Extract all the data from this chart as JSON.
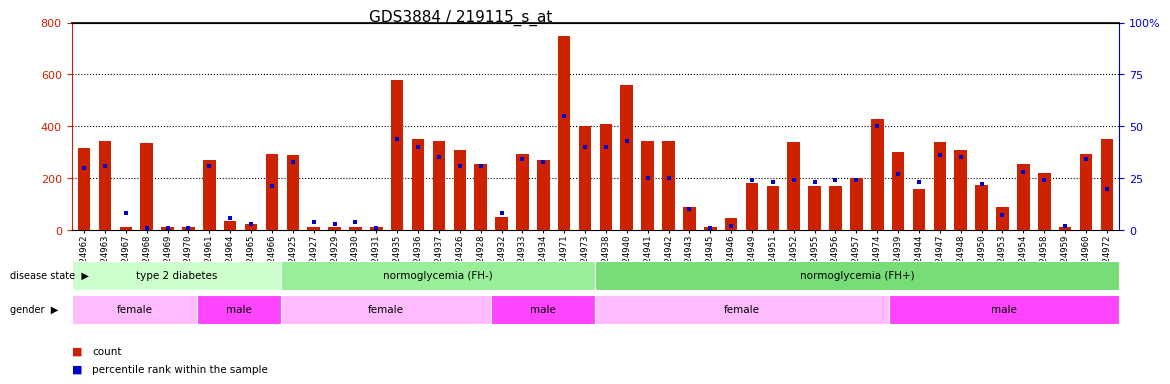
{
  "title": "GDS3884 / 219115_s_at",
  "samples": [
    "GSM624962",
    "GSM624963",
    "GSM624967",
    "GSM624968",
    "GSM624969",
    "GSM624970",
    "GSM624961",
    "GSM624964",
    "GSM624965",
    "GSM624966",
    "GSM624925",
    "GSM624927",
    "GSM624929",
    "GSM624930",
    "GSM624931",
    "GSM624935",
    "GSM624936",
    "GSM624937",
    "GSM624926",
    "GSM624928",
    "GSM624932",
    "GSM624933",
    "GSM624934",
    "GSM624971",
    "GSM624973",
    "GSM624938",
    "GSM624940",
    "GSM624941",
    "GSM624942",
    "GSM624943",
    "GSM624945",
    "GSM624946",
    "GSM624949",
    "GSM624951",
    "GSM624952",
    "GSM624955",
    "GSM624956",
    "GSM624957",
    "GSM624974",
    "GSM624939",
    "GSM624944",
    "GSM624947",
    "GSM624948",
    "GSM624950",
    "GSM624953",
    "GSM624954",
    "GSM624958",
    "GSM624959",
    "GSM624960",
    "GSM624972"
  ],
  "counts": [
    315,
    345,
    10,
    335,
    10,
    10,
    270,
    35,
    25,
    295,
    290,
    10,
    10,
    10,
    10,
    580,
    350,
    345,
    310,
    255,
    50,
    295,
    270,
    750,
    400,
    410,
    560,
    345,
    345,
    90,
    10,
    45,
    180,
    170,
    340,
    170,
    170,
    200,
    430,
    300,
    160,
    340,
    310,
    175,
    90,
    255,
    220,
    10,
    295,
    350
  ],
  "percentiles_pct": [
    30,
    31,
    8,
    1,
    1,
    1,
    31,
    6,
    3,
    21,
    33,
    4,
    3,
    4,
    1,
    44,
    40,
    35,
    31,
    31,
    8,
    34,
    33,
    55,
    40,
    40,
    43,
    25,
    25,
    10,
    1,
    2,
    24,
    23,
    24,
    23,
    24,
    24,
    50,
    27,
    23,
    36,
    35,
    22,
    7,
    28,
    24,
    2,
    34,
    20
  ],
  "disease_state_groups": [
    {
      "label": "type 2 diabetes",
      "start": 0,
      "end": 10,
      "color": "#ccffcc"
    },
    {
      "label": "normoglycemia (FH-)",
      "start": 10,
      "end": 25,
      "color": "#99ee99"
    },
    {
      "label": "normoglycemia (FH+)",
      "start": 25,
      "end": 50,
      "color": "#77dd77"
    }
  ],
  "gender_groups": [
    {
      "label": "female",
      "start": 0,
      "end": 6,
      "color": "#ffbbff"
    },
    {
      "label": "male",
      "start": 6,
      "end": 10,
      "color": "#ff44ff"
    },
    {
      "label": "female",
      "start": 10,
      "end": 20,
      "color": "#ffbbff"
    },
    {
      "label": "male",
      "start": 20,
      "end": 25,
      "color": "#ff44ff"
    },
    {
      "label": "female",
      "start": 25,
      "end": 39,
      "color": "#ffbbff"
    },
    {
      "label": "male",
      "start": 39,
      "end": 50,
      "color": "#ff44ff"
    }
  ],
  "bar_color": "#cc2200",
  "percentile_color": "#0000cc",
  "ylim_left": [
    0,
    800
  ],
  "ylim_right": [
    0,
    100
  ],
  "yticks_left": [
    0,
    200,
    400,
    600,
    800
  ],
  "yticks_right": [
    0,
    25,
    50,
    75,
    100
  ],
  "title_fontsize": 11,
  "tick_fontsize": 6.5
}
